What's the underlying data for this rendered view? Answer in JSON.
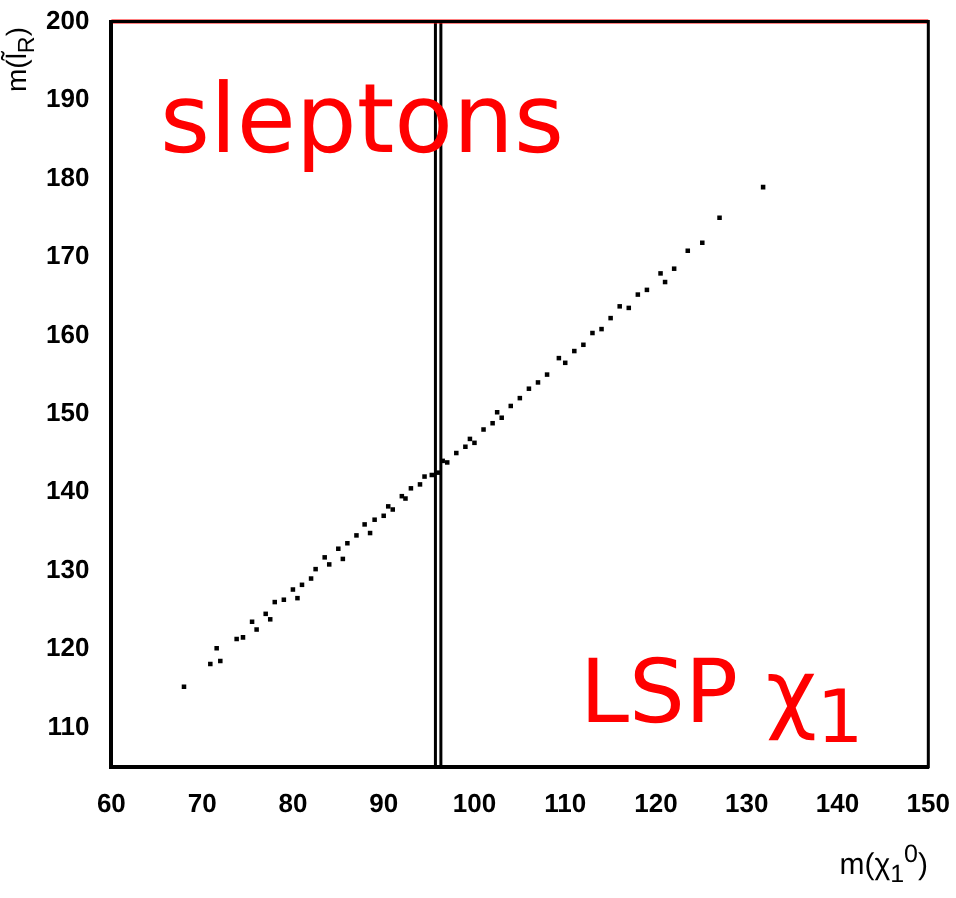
{
  "chart_data": {
    "type": "scatter",
    "xlabel": "m(χ$_{1}$$^{0}$)",
    "ylabel": "m(l̃$_{R}$)",
    "xlim": [
      60,
      150
    ],
    "ylim": [
      105,
      200
    ],
    "xticks": [
      60,
      70,
      80,
      90,
      100,
      110,
      120,
      130,
      140,
      150
    ],
    "yticks": [
      110,
      120,
      130,
      140,
      150,
      160,
      170,
      180,
      190,
      200
    ],
    "marker": "square",
    "grid": false,
    "legend": false,
    "series": [
      {
        "color": "#000000",
        "x": [
          68,
          70.9,
          71.6,
          72,
          73.8,
          74.5,
          75.5,
          76,
          77,
          77.5,
          78,
          79,
          80,
          80.5,
          81,
          82,
          82.5,
          83.5,
          84,
          85,
          85.5,
          86,
          87,
          87.9,
          88.5,
          89,
          90,
          90.5,
          91,
          92,
          92.4,
          93,
          94,
          94.5,
          95.3,
          96,
          96.5,
          97,
          98,
          99,
          99.5,
          100,
          101,
          102,
          102.5,
          103,
          104,
          105,
          106,
          107,
          108,
          109.3,
          110,
          111,
          112,
          113,
          114,
          115,
          116,
          117,
          118,
          119,
          120.5,
          121,
          122,
          123.5,
          125.1,
          127,
          131.8
        ],
        "values": [
          115.2,
          118.1,
          120.1,
          118.5,
          121.3,
          121.5,
          123.5,
          122.5,
          124.5,
          123.8,
          126,
          126.3,
          127.6,
          126.5,
          128.2,
          129,
          130.2,
          131.7,
          130.8,
          132.8,
          131.5,
          133.5,
          134.5,
          135.9,
          134.8,
          136.5,
          137,
          138.2,
          137.8,
          139.5,
          139.2,
          140.5,
          141,
          142,
          142.2,
          142.5,
          144,
          143.8,
          145,
          145.8,
          146.8,
          146.3,
          148,
          148.8,
          150.2,
          149.5,
          151,
          152,
          153.2,
          154,
          155,
          157.1,
          156.5,
          158,
          158.8,
          160.3,
          160.8,
          162.2,
          163.7,
          163.5,
          165.2,
          165.8,
          167.9,
          166.8,
          168.5,
          170.8,
          171.8,
          175,
          178.9
        ]
      }
    ],
    "ref_lines": [
      {
        "axis": "x",
        "value": 95.7,
        "color": "#000000"
      },
      {
        "axis": "x",
        "value": 96.3,
        "color": "#000000"
      },
      {
        "axis": "y",
        "value": 200,
        "color": "#ff0000"
      }
    ],
    "annotations": [
      "sleptons",
      "LSP χ$_{1}$"
    ]
  }
}
